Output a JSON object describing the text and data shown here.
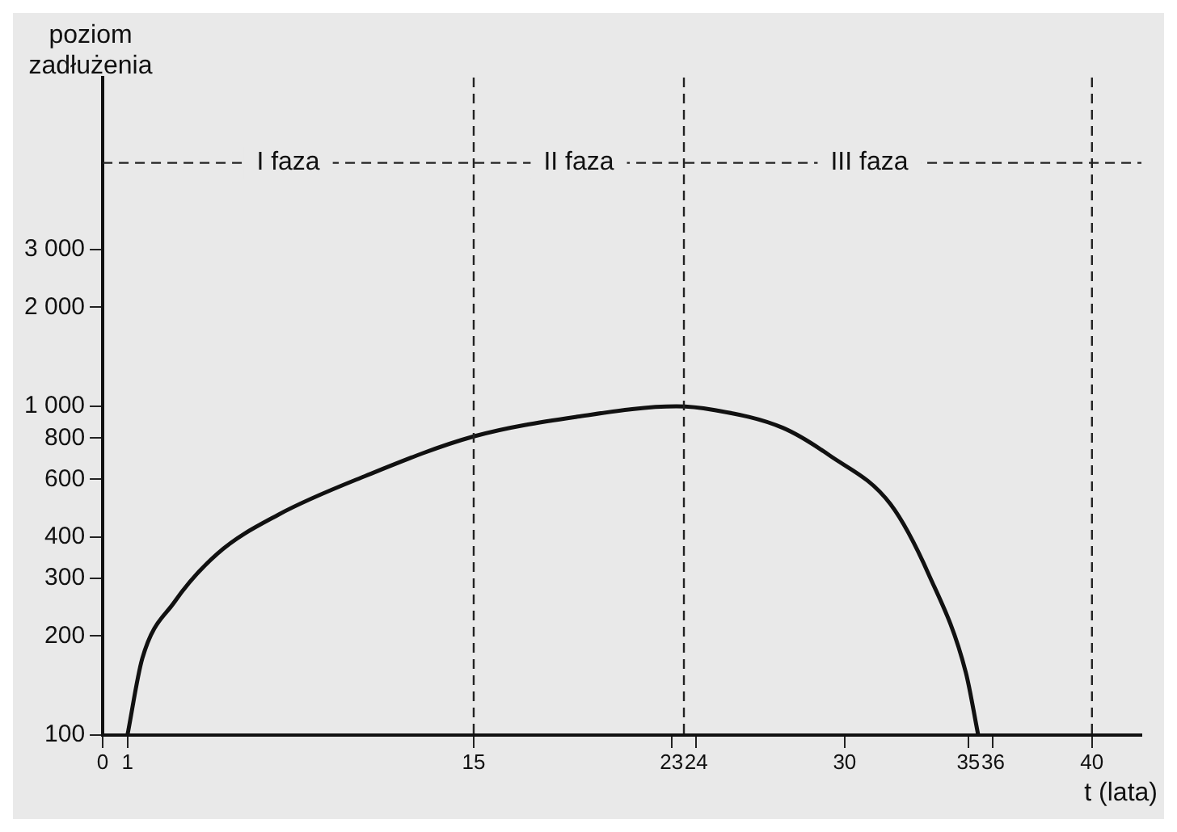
{
  "chart_data": {
    "type": "line",
    "xlabel": "t (lata)",
    "ylabel": "poziom zadłużenia",
    "series": [
      {
        "color": "#111111",
        "x": [
          1,
          1.6,
          2.9,
          4.65,
          7.1,
          10.6,
          15,
          19.2,
          23.2,
          24.7,
          27.5,
          29.4,
          31.85,
          33.4,
          34.9,
          35.4
        ],
        "values": [
          100,
          171,
          254,
          357,
          468,
          613,
          810,
          930,
          1000,
          975,
          860,
          708,
          504,
          308,
          155,
          100
        ]
      }
    ],
    "xlim": [
      0,
      42
    ],
    "xticks": [
      0,
      1,
      15,
      23,
      24,
      30,
      35,
      36,
      40
    ],
    "ylim": [
      100,
      10000
    ],
    "log": "y",
    "yticks": [
      100,
      200,
      300,
      400,
      600,
      800,
      {
        "value": 1000,
        "label": "1 000"
      },
      {
        "value": 2000,
        "label": "2 000"
      },
      {
        "value": 3000,
        "label": "3 000"
      }
    ],
    "ref_lines": [
      {
        "axis": "x",
        "value": 15,
        "line_style": "dashed"
      },
      {
        "axis": "x",
        "value": 23.5,
        "line_style": "dashed"
      },
      {
        "axis": "x",
        "value": 40,
        "line_style": "dashed"
      },
      {
        "axis": "y",
        "value": 5500,
        "line_style": "dashed"
      }
    ],
    "annotations": [
      {
        "text": "I faza",
        "x": 7.5,
        "y": 5500
      },
      {
        "text": "II faza",
        "x": 19.25,
        "y": 5500
      },
      {
        "text": "III faza",
        "x": 31,
        "y": 5500
      }
    ],
    "grid": false,
    "legend": false,
    "marker": "none",
    "line_style": "solid"
  }
}
